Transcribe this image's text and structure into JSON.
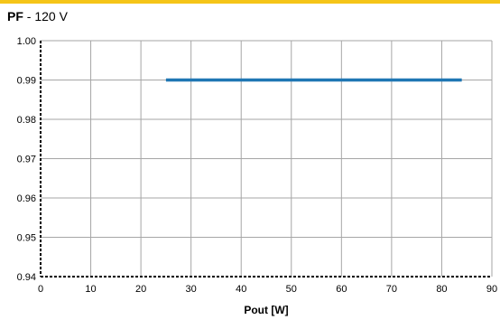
{
  "header": {
    "title_bold": "PF",
    "title_rest": " - 120 V"
  },
  "colors": {
    "accent_bar": "#f5c518",
    "series": "#1f77b4",
    "grid": "#a6a6a6",
    "axis": "#000000"
  },
  "chart_data": {
    "type": "line",
    "title": "PF - 120 V",
    "xlabel": "Pout [W]",
    "ylabel": "",
    "xlim": [
      0,
      90
    ],
    "ylim": [
      0.94,
      1.0
    ],
    "xticks": [
      0,
      10,
      20,
      30,
      40,
      50,
      60,
      70,
      80,
      90
    ],
    "yticks": [
      "0.94",
      "0.95",
      "0.96",
      "0.97",
      "0.98",
      "0.99",
      "1.00"
    ],
    "grid": true,
    "legend": "none",
    "series": [
      {
        "x": [
          25,
          84
        ],
        "y": [
          0.99,
          0.99
        ]
      }
    ]
  }
}
